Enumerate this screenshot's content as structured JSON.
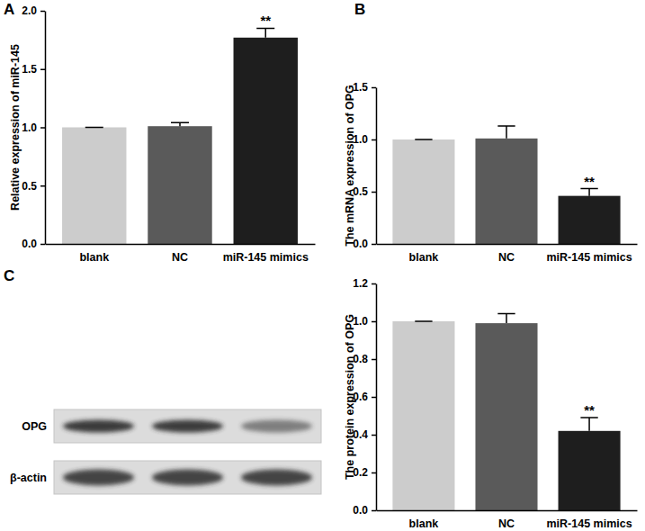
{
  "chart_data": [
    {
      "type": "bar",
      "title": "A",
      "ylabel": "Relative expression of miR-145",
      "categories": [
        "blank",
        "NC",
        "miR-145 mimics"
      ],
      "values": [
        1.0,
        1.01,
        1.77
      ],
      "errors": [
        0,
        0.03,
        0.08
      ],
      "colors": [
        "#cccccc",
        "#5a5a5a",
        "#1e1e1e"
      ],
      "ylim": [
        0,
        2.0
      ],
      "yticks": [
        {
          "value": 0,
          "label": "0.0"
        },
        {
          "value": 0.5,
          "label": "0.5"
        },
        {
          "value": 1.0,
          "label": "1.0"
        },
        {
          "value": 1.5,
          "label": "1.5"
        },
        {
          "value": 2.0,
          "label": "2.0"
        }
      ],
      "annotations": [
        {
          "x": "miR-145 mimics",
          "text": "**"
        }
      ]
    },
    {
      "type": "bar",
      "title": "B",
      "ylabel": "The mRNA expression of OPG",
      "categories": [
        "blank",
        "NC",
        "miR-145 mimics"
      ],
      "values": [
        1.0,
        1.01,
        0.46
      ],
      "errors": [
        0,
        0.12,
        0.07
      ],
      "colors": [
        "#cccccc",
        "#5a5a5a",
        "#1e1e1e"
      ],
      "ylim": [
        0,
        1.5
      ],
      "yticks": [
        {
          "value": 0,
          "label": "0.0"
        },
        {
          "value": 0.5,
          "label": "0.5"
        },
        {
          "value": 1.0,
          "label": "1.0"
        },
        {
          "value": 1.5,
          "label": "1.5"
        }
      ],
      "annotations": [
        {
          "x": "miR-145 mimics",
          "text": "**"
        }
      ]
    },
    {
      "type": "bar",
      "title": "C",
      "ylabel": "The protein expression of OPG",
      "categories": [
        "blank",
        "NC",
        "miR-145 mimics"
      ],
      "values": [
        1.0,
        0.99,
        0.42
      ],
      "errors": [
        0,
        0.05,
        0.07
      ],
      "colors": [
        "#cccccc",
        "#5a5a5a",
        "#1e1e1e"
      ],
      "ylim": [
        0,
        1.2
      ],
      "yticks": [
        {
          "value": 0,
          "label": "0.0"
        },
        {
          "value": 0.2,
          "label": "0.2"
        },
        {
          "value": 0.4,
          "label": "0.4"
        },
        {
          "value": 0.6,
          "label": "0.6"
        },
        {
          "value": 0.8,
          "label": "0.8"
        },
        {
          "value": 1.0,
          "label": "1.0"
        },
        {
          "value": 1.2,
          "label": "1.2"
        }
      ],
      "annotations": [
        {
          "x": "miR-145 mimics",
          "text": "**"
        }
      ],
      "blot_labels": [
        "OPG",
        "β-actin"
      ]
    }
  ]
}
